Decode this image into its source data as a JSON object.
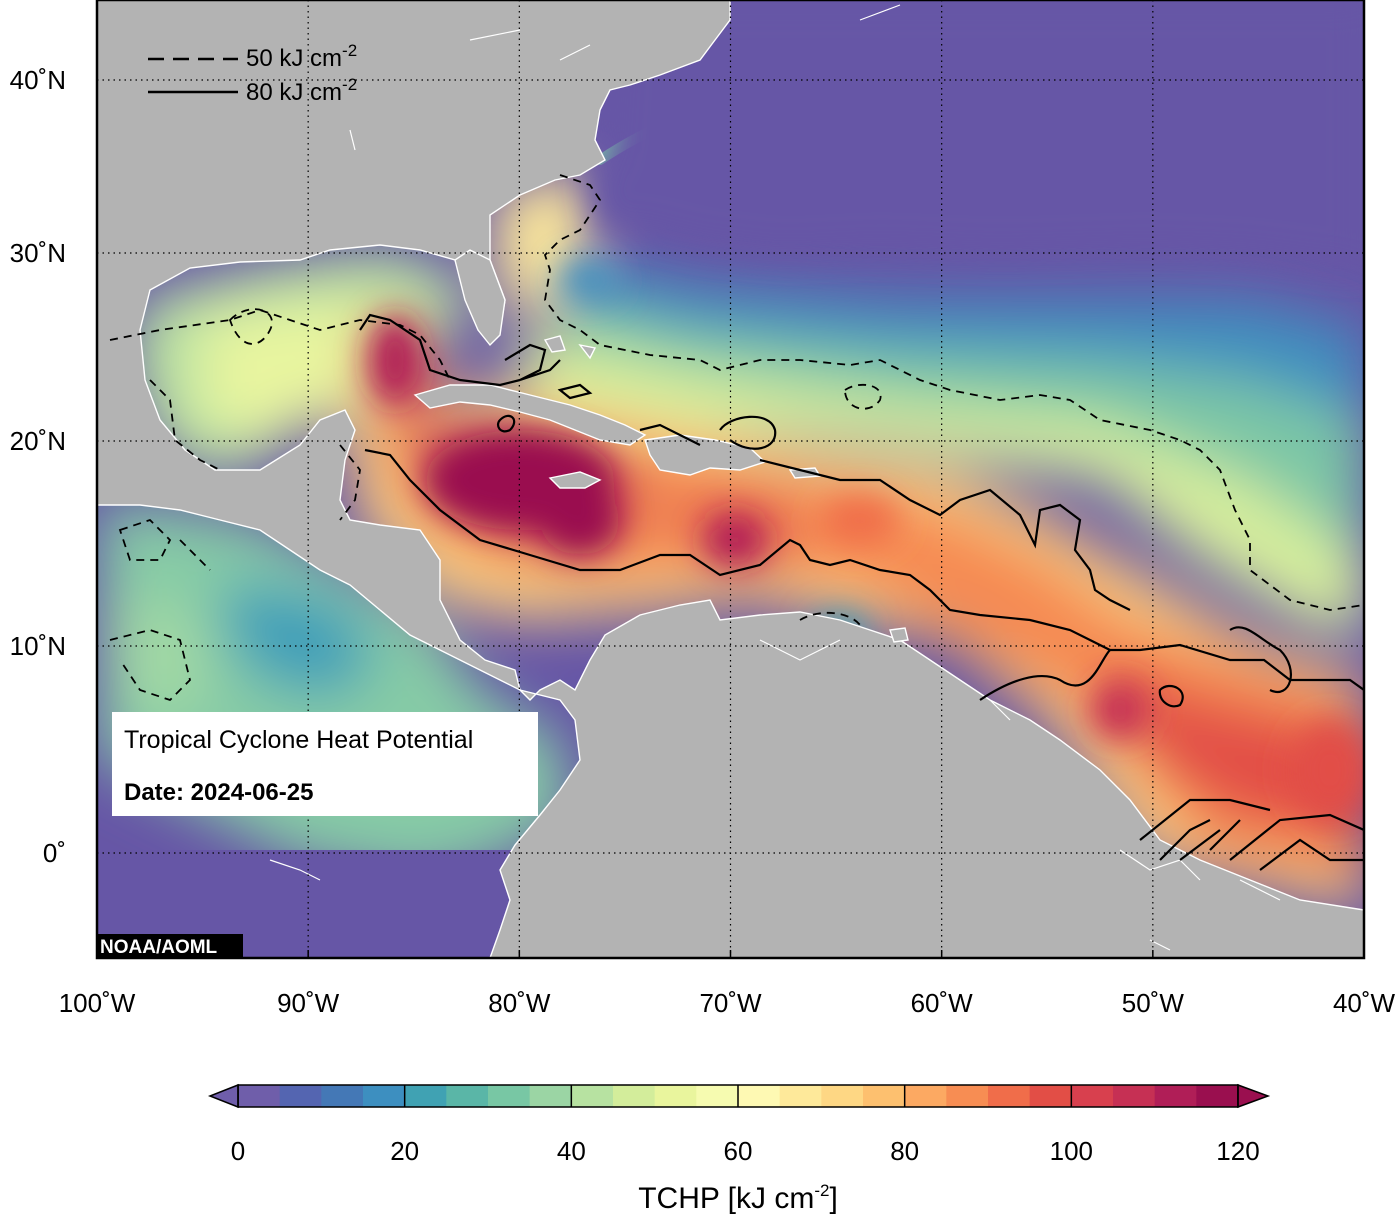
{
  "map": {
    "title": "Tropical Cyclone Heat Potential",
    "date_label": "Date: 2024-06-25",
    "credit": "NOAA/AOML",
    "lon_range": [
      -100,
      -40
    ],
    "lat_range": [
      -5,
      45
    ],
    "lon_ticks": [
      {
        "value": -100,
        "label": "100˚W"
      },
      {
        "value": -90,
        "label": "90˚W"
      },
      {
        "value": -80,
        "label": "80˚W"
      },
      {
        "value": -70,
        "label": "70˚W"
      },
      {
        "value": -60,
        "label": "60˚W"
      },
      {
        "value": -50,
        "label": "50˚W"
      },
      {
        "value": -40,
        "label": "40˚W"
      }
    ],
    "lat_ticks": [
      {
        "value": 40,
        "label": "40˚N"
      },
      {
        "value": 30,
        "label": "30˚N"
      },
      {
        "value": 20,
        "label": "20˚N"
      },
      {
        "value": 10,
        "label": "10˚N"
      },
      {
        "value": 0,
        "label": "0˚"
      }
    ],
    "grid": "dotted",
    "land_color": "#b3b3b3",
    "coast_color": "#ffffff"
  },
  "legend": {
    "dashed_label": "50 kJ cm",
    "solid_label": "80 kJ cm",
    "unit_exponent": "-2",
    "placement": "top-left"
  },
  "colorbar": {
    "title": "TCHP [kJ cm",
    "title_exponent": "-2",
    "title_close": "]",
    "range": [
      0,
      120
    ],
    "step": 5,
    "ticks": [
      {
        "value": 0,
        "label": "0"
      },
      {
        "value": 20,
        "label": "20"
      },
      {
        "value": 40,
        "label": "40"
      },
      {
        "value": 60,
        "label": "60"
      },
      {
        "value": 80,
        "label": "80"
      },
      {
        "value": 100,
        "label": "100"
      },
      {
        "value": 120,
        "label": "120"
      }
    ],
    "palette": [
      "#6f5eaa",
      "#5465b1",
      "#4478b6",
      "#3d8fc0",
      "#40a2b3",
      "#5ab6a7",
      "#78c7a4",
      "#9bd5a4",
      "#b7e2a1",
      "#d3ed9b",
      "#e9f59d",
      "#f6fbb0",
      "#fef9b3",
      "#fee99a",
      "#fed784",
      "#fdc06f",
      "#fca962",
      "#f78d53",
      "#f06d4a",
      "#e24e46",
      "#d8404e",
      "#c63054",
      "#b01e57",
      "#9a0f4f"
    ]
  }
}
